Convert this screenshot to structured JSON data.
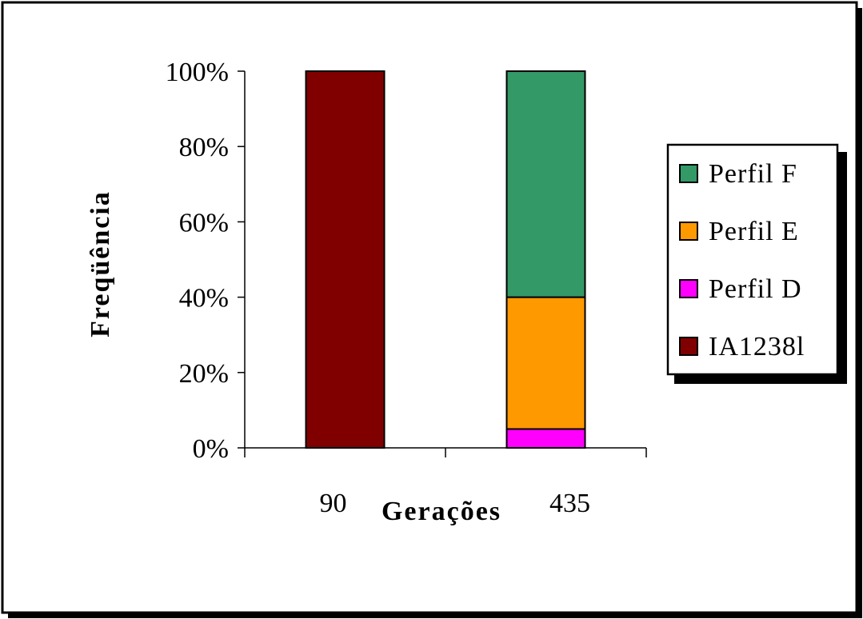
{
  "chart_data": {
    "type": "bar",
    "stacked": true,
    "title": "",
    "xlabel": "Gerações",
    "ylabel": "Freqüência",
    "categories": [
      "90",
      "435"
    ],
    "ylim": [
      0,
      100
    ],
    "y_ticks": [
      "0%",
      "20%",
      "40%",
      "60%",
      "80%",
      "100%"
    ],
    "y_tick_values": [
      0,
      20,
      40,
      60,
      80,
      100
    ],
    "grid": false,
    "legend_position": "right",
    "series": [
      {
        "name": "IA1238l",
        "color": "#800000",
        "values": [
          100,
          0
        ]
      },
      {
        "name": "Perfil D",
        "color": "#ff00ff",
        "values": [
          0,
          5
        ]
      },
      {
        "name": "Perfil E",
        "color": "#ff9900",
        "values": [
          0,
          35
        ]
      },
      {
        "name": "Perfil F",
        "color": "#339966",
        "values": [
          0,
          60
        ]
      }
    ],
    "legend_order": [
      "Perfil F",
      "Perfil E",
      "Perfil D",
      "IA1238l"
    ]
  }
}
